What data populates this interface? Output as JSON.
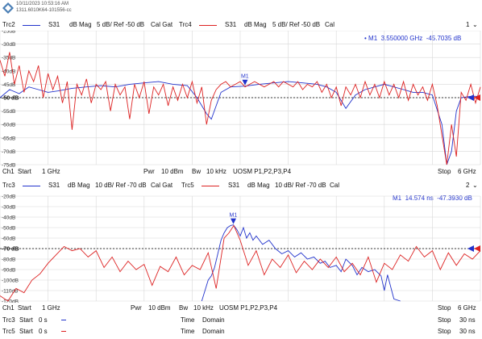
{
  "header": {
    "timestamp": "10/11/2023 10:53:16 AM",
    "instrument": "1311.6010K64-101556-cc"
  },
  "diagram1": {
    "tag": "1",
    "tag_icon": "chevron-down-icon",
    "trace_a": {
      "name": "Trc2",
      "param": "S31",
      "format": "dB Mag",
      "scale": "5 dB/ Ref -50 dB",
      "extra": "Cal Gat",
      "color": "#2233cc"
    },
    "trace_b": {
      "name": "Trc4",
      "param": "S31",
      "format": "dB Mag",
      "scale": "5 dB/ Ref -50 dB",
      "extra": "Cal",
      "color": "#dd2222"
    },
    "marker_readout": {
      "dot": "•",
      "name": "M1",
      "stimulus": "3.550000",
      "stimulus_unit": "GHz",
      "response": "-45.7035",
      "response_unit": "dB"
    },
    "marker_label": "M1",
    "bottom": {
      "channel": "Ch1",
      "start_label": "Start",
      "start": "1 GHz",
      "pwr_label": "Pwr",
      "pwr": "10 dBm",
      "bw_label": "Bw",
      "bw": "10 kHz",
      "ports": "UOSM P1,P2,P3,P4",
      "stop_label": "Stop",
      "stop": "6 GHz"
    }
  },
  "diagram2": {
    "tag": "2",
    "tag_icon": "chevron-down-icon",
    "trace_a": {
      "name": "Trc3",
      "param": "S31",
      "format": "dB Mag",
      "scale": "10 dB/ Ref -70 dB",
      "extra": "Cal Gat",
      "color": "#2233cc"
    },
    "trace_b": {
      "name": "Trc5",
      "param": "S31",
      "format": "dB Mag",
      "scale": "10 dB/ Ref -70 dB",
      "extra": "Cal",
      "color": "#dd2222"
    },
    "marker_readout": {
      "name": "M1",
      "stimulus": "14.574",
      "stimulus_unit": "ns",
      "response": "-47.3930",
      "response_unit": "dB"
    },
    "marker_label": "M1",
    "bottom": {
      "channel": "Ch1",
      "start_label": "Start",
      "start": "1 GHz",
      "pwr_label": "Pwr",
      "pwr": "10 dBm",
      "bw_label": "Bw",
      "bw": "10 kHz",
      "ports": "UOSM P1,P2,P3,P4",
      "stop_label": "Stop",
      "stop": "6 GHz"
    },
    "time_rows": [
      {
        "trace": "Trc3",
        "start_label": "Start",
        "start": "0 s",
        "time_label": "Time",
        "domain": "Domain",
        "stop_label": "Stop",
        "stop": "30 ns",
        "color": "#2233cc"
      },
      {
        "trace": "Trc5",
        "start_label": "Start",
        "start": "0 s",
        "time_label": "Time",
        "domain": "Domain",
        "stop_label": "Stop",
        "stop": "30 ns",
        "color": "#dd2222"
      }
    ]
  },
  "chart_data": [
    {
      "type": "line",
      "title": "",
      "xlabel": "",
      "ylabel": "",
      "x_unit": "GHz",
      "xlim": [
        1,
        6
      ],
      "ylim": [
        -75,
        -25
      ],
      "ytick_step": 5,
      "ytick_labels": [
        "-25dB",
        "-30dB",
        "-35dB",
        "-40dB",
        "-45dB",
        "-50 dB",
        "-55dB",
        "-60dB",
        "-65dB",
        "-70dB",
        "-75dB"
      ],
      "ref_level": -50,
      "ref_label": "-50 dB",
      "grid": true,
      "series": [
        {
          "name": "Trc2",
          "color": "#2233cc",
          "x": [
            1.0,
            1.1,
            1.2,
            1.3,
            1.4,
            1.5,
            1.6,
            1.75,
            1.9,
            2.05,
            2.2,
            2.35,
            2.5,
            2.65,
            2.8,
            2.95,
            3.05,
            3.15,
            3.2,
            3.25,
            3.3,
            3.4,
            3.55,
            3.7,
            3.85,
            4.0,
            4.15,
            4.3,
            4.4,
            4.5,
            4.6,
            4.7,
            4.8,
            4.9,
            5.0,
            5.1,
            5.2,
            5.3,
            5.4,
            5.5,
            5.6,
            5.65,
            5.7,
            5.75,
            5.8,
            5.9,
            6.0
          ],
          "y": [
            -50,
            -47,
            -48.5,
            -46,
            -47,
            -48,
            -47.5,
            -46.5,
            -46,
            -45.5,
            -46,
            -45,
            -44.5,
            -44,
            -45,
            -45.5,
            -50,
            -56,
            -58,
            -53,
            -48,
            -46,
            -45.7,
            -45,
            -44.5,
            -44,
            -44.5,
            -45,
            -46,
            -48,
            -54,
            -49,
            -47,
            -46,
            -45,
            -46,
            -47,
            -48,
            -48,
            -49,
            -60,
            -75,
            -70,
            -55,
            -50,
            -49.5,
            -49.5
          ]
        },
        {
          "name": "Trc4",
          "color": "#dd2222",
          "x": [
            1.0,
            1.05,
            1.1,
            1.15,
            1.2,
            1.25,
            1.3,
            1.35,
            1.4,
            1.45,
            1.5,
            1.55,
            1.6,
            1.65,
            1.7,
            1.75,
            1.8,
            1.85,
            1.9,
            1.95,
            2.0,
            2.05,
            2.1,
            2.15,
            2.2,
            2.25,
            2.3,
            2.35,
            2.4,
            2.45,
            2.5,
            2.55,
            2.6,
            2.65,
            2.7,
            2.75,
            2.8,
            2.85,
            2.9,
            2.95,
            3.0,
            3.05,
            3.1,
            3.15,
            3.2,
            3.25,
            3.3,
            3.35,
            3.4,
            3.45,
            3.5,
            3.55,
            3.6,
            3.65,
            3.7,
            3.75,
            3.8,
            3.85,
            3.9,
            3.95,
            4.0,
            4.05,
            4.1,
            4.15,
            4.2,
            4.25,
            4.3,
            4.35,
            4.4,
            4.45,
            4.5,
            4.55,
            4.6,
            4.65,
            4.7,
            4.75,
            4.8,
            4.85,
            4.9,
            4.95,
            5.0,
            5.05,
            5.1,
            5.15,
            5.2,
            5.25,
            5.3,
            5.35,
            5.4,
            5.45,
            5.5,
            5.55,
            5.6,
            5.65,
            5.7,
            5.75,
            5.8,
            5.85,
            5.9,
            5.95,
            6.0
          ],
          "y": [
            -36,
            -42,
            -33,
            -45,
            -38,
            -48,
            -40,
            -44,
            -38,
            -50,
            -41,
            -47,
            -42,
            -52,
            -44,
            -62,
            -45,
            -49,
            -43,
            -52,
            -45,
            -47,
            -44,
            -55,
            -45,
            -49,
            -46,
            -58,
            -45,
            -50,
            -44,
            -56,
            -46,
            -49,
            -45,
            -53,
            -46,
            -51,
            -45,
            -50,
            -44,
            -52,
            -46,
            -60,
            -51,
            -47,
            -45,
            -44,
            -46,
            -45,
            -44,
            -46,
            -45,
            -44,
            -45,
            -46,
            -45,
            -44,
            -46,
            -44,
            -45,
            -46,
            -44,
            -47,
            -45,
            -46,
            -44,
            -48,
            -45,
            -50,
            -46,
            -53,
            -46,
            -49,
            -45,
            -50,
            -44,
            -49,
            -45,
            -50,
            -44,
            -49,
            -45,
            -50,
            -44,
            -51,
            -45,
            -49,
            -46,
            -51,
            -45,
            -53,
            -64,
            -75,
            -60,
            -72,
            -48,
            -51,
            -45,
            -52,
            -46
          ]
        }
      ],
      "markers": [
        {
          "name": "M1",
          "x": 3.55,
          "y": -45.7035
        }
      ]
    },
    {
      "type": "line",
      "title": "",
      "xlabel": "",
      "ylabel": "",
      "x_unit": "ns",
      "xlim": [
        0,
        30
      ],
      "ylim": [
        -120,
        -20
      ],
      "ytick_step": 10,
      "ytick_labels": [
        "-20dB",
        "-30dB",
        "-40dB",
        "-50dB",
        "-60dB",
        "-70 dB",
        "-80dB",
        "-90dB",
        "-100dB",
        "-110dB",
        "-120dB"
      ],
      "ref_level": -70,
      "ref_label": "-70 dB",
      "grid": true,
      "series": [
        {
          "name": "Trc3",
          "color": "#2233cc",
          "x": [
            12.6,
            12.8,
            13.0,
            13.2,
            13.4,
            13.6,
            13.8,
            14.0,
            14.2,
            14.4,
            14.574,
            14.8,
            15.0,
            15.2,
            15.4,
            15.6,
            15.8,
            16.0,
            16.4,
            16.8,
            17.2,
            17.6,
            18.0,
            18.4,
            18.8,
            19.2,
            19.6,
            20.0,
            20.3,
            20.6,
            21.0,
            21.3,
            21.6,
            22.0,
            22.3,
            22.6,
            23.0,
            23.4,
            23.8,
            24.0,
            24.2,
            24.6,
            25.0
          ],
          "y": [
            -122,
            -110,
            -100,
            -96,
            -88,
            -75,
            -62,
            -55,
            -50,
            -48,
            -47.39,
            -52,
            -58,
            -50,
            -60,
            -55,
            -62,
            -58,
            -66,
            -62,
            -70,
            -75,
            -72,
            -78,
            -74,
            -80,
            -78,
            -84,
            -82,
            -88,
            -86,
            -92,
            -80,
            -86,
            -95,
            -88,
            -92,
            -90,
            -96,
            -110,
            -95,
            -118,
            -120
          ]
        },
        {
          "name": "Trc5",
          "color": "#dd2222",
          "x": [
            0,
            0.5,
            1.0,
            1.5,
            2.0,
            2.5,
            3.0,
            3.5,
            4.0,
            4.5,
            5.0,
            5.5,
            6.0,
            6.5,
            7.0,
            7.5,
            8.0,
            8.5,
            9.0,
            9.5,
            10.0,
            10.5,
            11.0,
            11.5,
            12.0,
            12.5,
            13.0,
            13.5,
            14.0,
            14.3,
            14.6,
            15.0,
            15.5,
            16.0,
            16.5,
            17.0,
            17.5,
            18.0,
            18.5,
            19.0,
            19.5,
            20.0,
            20.5,
            21.0,
            21.5,
            22.0,
            22.5,
            23.0,
            23.5,
            24.0,
            24.5,
            25.0,
            25.5,
            26.0,
            26.5,
            27.0,
            27.5,
            28.0,
            28.5,
            29.0,
            29.5,
            30.0
          ],
          "y": [
            -115,
            -120,
            -108,
            -112,
            -100,
            -94,
            -84,
            -76,
            -68,
            -72,
            -70,
            -78,
            -72,
            -88,
            -78,
            -92,
            -82,
            -90,
            -85,
            -105,
            -87,
            -92,
            -78,
            -95,
            -86,
            -90,
            -74,
            -108,
            -60,
            -55,
            -48,
            -62,
            -86,
            -72,
            -95,
            -80,
            -88,
            -76,
            -93,
            -82,
            -90,
            -80,
            -88,
            -78,
            -92,
            -84,
            -95,
            -78,
            -102,
            -84,
            -90,
            -76,
            -82,
            -68,
            -78,
            -72,
            -90,
            -74,
            -86,
            -75,
            -80,
            -72
          ]
        }
      ],
      "markers": [
        {
          "name": "M1",
          "x": 14.574,
          "y": -47.393
        }
      ]
    }
  ]
}
